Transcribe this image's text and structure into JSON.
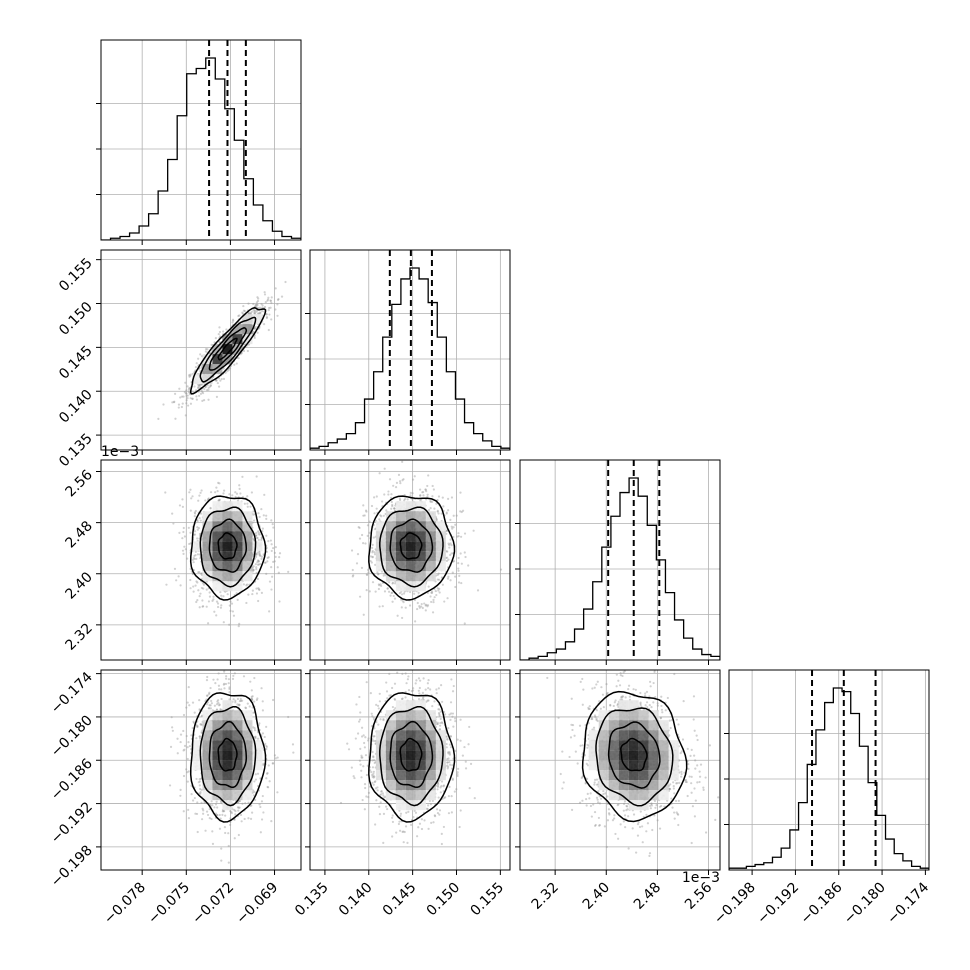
{
  "chart_data": {
    "type": "corner",
    "parameters": [
      {
        "index": 0,
        "median": -0.0722,
        "quantiles": [
          -0.07345,
          -0.0722,
          -0.07095
        ],
        "range": [
          -0.0808,
          -0.0672
        ],
        "ticks": [
          -0.078,
          -0.075,
          -0.072,
          -0.069
        ],
        "tick_labels": [
          "−0.078",
          "−0.075",
          "−0.072",
          "−0.069"
        ],
        "offset_label": "",
        "hist": [
          0,
          1,
          2,
          4,
          8,
          15,
          28,
          46,
          71,
          95,
          98,
          104,
          92,
          75,
          57,
          35,
          20,
          11,
          5,
          2,
          1
        ]
      },
      {
        "index": 1,
        "median": 0.1448,
        "quantiles": [
          0.1424,
          0.1448,
          0.1472
        ],
        "range": [
          0.1333,
          0.1561
        ],
        "ticks": [
          0.135,
          0.14,
          0.145,
          0.15,
          0.155
        ],
        "tick_labels": [
          "0.135",
          "0.140",
          "0.145",
          "0.150",
          "0.155"
        ],
        "offset_label": "",
        "hist": [
          1,
          2,
          4,
          6,
          9,
          15,
          28,
          43,
          62,
          80,
          94,
          100,
          94,
          81,
          62,
          43,
          28,
          15,
          9,
          5,
          2,
          1
        ]
      },
      {
        "index": 2,
        "median": 2.443,
        "quantiles": [
          2.403,
          2.443,
          2.483
        ],
        "range": [
          2.265,
          2.578
        ],
        "ticks": [
          2.32,
          2.4,
          2.48,
          2.56
        ],
        "tick_labels": [
          "2.32",
          "2.40",
          "2.48",
          "2.56"
        ],
        "offset_label": "1e−3",
        "hist": [
          0,
          1,
          2,
          4,
          6,
          10,
          17,
          28,
          43,
          62,
          79,
          92,
          100,
          90,
          74,
          55,
          37,
          22,
          12,
          6,
          3,
          2
        ]
      },
      {
        "index": 3,
        "median": -0.1853,
        "quantiles": [
          -0.1897,
          -0.1853,
          -0.1809
        ],
        "range": [
          -0.2012,
          -0.1735
        ],
        "ticks": [
          -0.198,
          -0.192,
          -0.186,
          -0.18,
          -0.174
        ],
        "tick_labels": [
          "−0.198",
          "−0.192",
          "−0.186",
          "−0.180",
          "−0.174"
        ],
        "offset_label": "",
        "hist": [
          1,
          1,
          2,
          3,
          4,
          7,
          12,
          22,
          37,
          58,
          77,
          92,
          100,
          98,
          86,
          68,
          48,
          30,
          17,
          9,
          5,
          2,
          1
        ]
      }
    ],
    "correlations": [
      [
        1.0,
        0.9,
        0.0,
        0.0
      ],
      [
        0.9,
        1.0,
        0.0,
        0.0
      ],
      [
        0.0,
        0.0,
        1.0,
        -0.1
      ],
      [
        0.0,
        0.0,
        -0.1,
        1.0
      ]
    ],
    "grid": true,
    "contour_levels": 4
  }
}
